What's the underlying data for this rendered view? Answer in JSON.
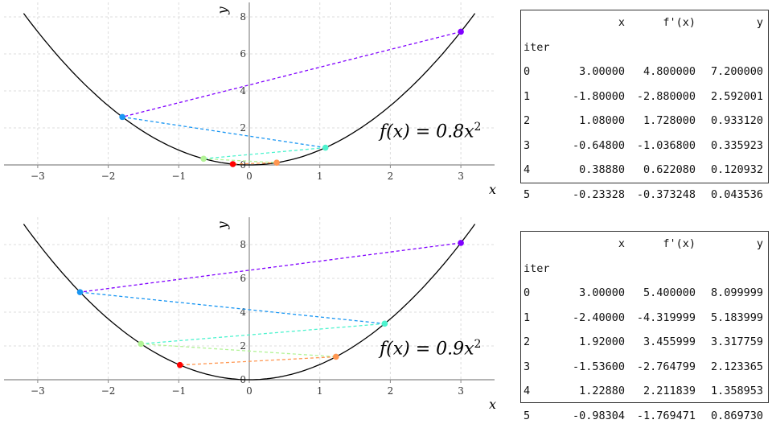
{
  "chart_data": [
    {
      "type": "line",
      "title": "f(x) = 0.8x^2",
      "formula": {
        "lhs": "f(x) = 0.8x",
        "exp": "2"
      },
      "coef": 0.8,
      "xlabel": "x",
      "ylabel": "y",
      "xlim": [
        -3.5,
        3.5
      ],
      "ylim": [
        0,
        8.8
      ],
      "curve_range": [
        -3.2,
        3.2
      ],
      "xticks": [
        -3,
        -2,
        -1,
        0,
        1,
        2,
        3
      ],
      "xtick_labels": [
        "−3",
        "−2",
        "−1",
        "0",
        "1",
        "2",
        "3"
      ],
      "yticks": [
        0,
        2,
        4,
        6,
        8
      ],
      "ytick_labels": [
        "0",
        "2",
        "4",
        "6",
        "8"
      ],
      "grid": true,
      "points": {
        "x": [
          3.0,
          -1.8,
          1.08,
          -0.648,
          0.3888,
          -0.23328
        ],
        "y": [
          7.2,
          2.592001,
          0.93312,
          0.335923,
          0.120932,
          0.043536
        ]
      },
      "colors": [
        "#8000ff",
        "#1996f3",
        "#4df3ce",
        "#b2f396",
        "#ff9650",
        "#ff0000"
      ]
    },
    {
      "type": "line",
      "title": "f(x) = 0.9x^2",
      "formula": {
        "lhs": "f(x) = 0.9x",
        "exp": "2"
      },
      "coef": 0.9,
      "xlabel": "x",
      "ylabel": "y",
      "xlim": [
        -3.5,
        3.5
      ],
      "ylim": [
        0,
        9.6
      ],
      "curve_range": [
        -3.2,
        3.2
      ],
      "xticks": [
        -3,
        -2,
        -1,
        0,
        1,
        2,
        3
      ],
      "xtick_labels": [
        "−3",
        "−2",
        "−1",
        "0",
        "1",
        "2",
        "3"
      ],
      "yticks": [
        0,
        2,
        4,
        6,
        8
      ],
      "ytick_labels": [
        "0",
        "2",
        "4",
        "6",
        "8"
      ],
      "grid": true,
      "points": {
        "x": [
          3.0,
          -2.4,
          1.92,
          -1.536,
          1.2288,
          -0.98304
        ],
        "y": [
          8.099999,
          5.183999,
          3.317759,
          2.123365,
          1.358953,
          0.86973
        ]
      },
      "colors": [
        "#8000ff",
        "#1996f3",
        "#4df3ce",
        "#b2f396",
        "#ff9650",
        "#ff0000"
      ]
    }
  ],
  "tables": [
    {
      "headers": [
        "",
        "x",
        "f'(x)",
        "y"
      ],
      "index_name": "iter",
      "rows": [
        [
          "0",
          "3.00000",
          "4.800000",
          "7.200000"
        ],
        [
          "1",
          "-1.80000",
          "-2.880000",
          "2.592001"
        ],
        [
          "2",
          "1.08000",
          "1.728000",
          "0.933120"
        ],
        [
          "3",
          "-0.64800",
          "-1.036800",
          "0.335923"
        ],
        [
          "4",
          "0.38880",
          "0.622080",
          "0.120932"
        ],
        [
          "5",
          "-0.23328",
          "-0.373248",
          "0.043536"
        ]
      ]
    },
    {
      "headers": [
        "",
        "x",
        "f'(x)",
        "y"
      ],
      "index_name": "iter",
      "rows": [
        [
          "0",
          "3.00000",
          "5.400000",
          "8.099999"
        ],
        [
          "1",
          "-2.40000",
          "-4.319999",
          "5.183999"
        ],
        [
          "2",
          "1.92000",
          "3.455999",
          "3.317759"
        ],
        [
          "3",
          "-1.53600",
          "-2.764799",
          "2.123365"
        ],
        [
          "4",
          "1.22880",
          "2.211839",
          "1.358953"
        ],
        [
          "5",
          "-0.98304",
          "-1.769471",
          "0.869730"
        ]
      ]
    }
  ]
}
